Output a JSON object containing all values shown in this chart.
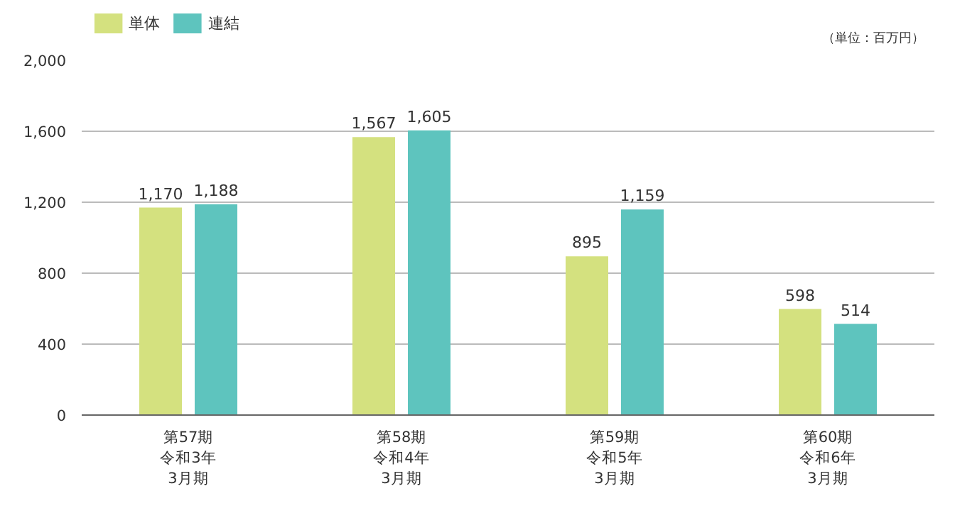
{
  "chart_data": {
    "type": "bar",
    "categories": [
      "第57期令和3年3月期",
      "第58期令和4年3月期",
      "第59期令和5年3月期",
      "第60期令和6年3月期"
    ],
    "series": [
      {
        "name": "単体",
        "color": "#d4e17f",
        "values": [
          1170,
          1567,
          895,
          598
        ],
        "value_labels": [
          "1,170",
          "1,567",
          "895",
          "598"
        ]
      },
      {
        "name": "連結",
        "color": "#5ec4be",
        "values": [
          1188,
          1605,
          1159,
          514
        ],
        "value_labels": [
          "1,188",
          "1,605",
          "1,159",
          "514"
        ]
      }
    ],
    "ylim": [
      0,
      2000
    ],
    "yticks": [
      0,
      400,
      800,
      {
        "value": 1200,
        "label": "1,200"
      },
      {
        "value": 1600,
        "label": "1,600"
      },
      {
        "value": 2000,
        "label": "2,000"
      }
    ],
    "grid": "y",
    "legend": "top left",
    "annotations": [
      "（単位：百万円）"
    ]
  }
}
